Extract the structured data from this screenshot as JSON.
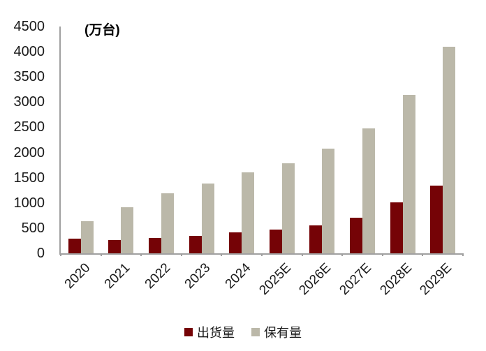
{
  "chart_data": {
    "type": "bar",
    "unit_label": "(万台)",
    "categories": [
      "2020",
      "2021",
      "2022",
      "2023",
      "2024",
      "2025E",
      "2026E",
      "2027E",
      "2028E",
      "2029E"
    ],
    "series": [
      {
        "name": "出货量",
        "color": "#750306",
        "values": [
          290,
          270,
          300,
          350,
          420,
          470,
          560,
          700,
          1010,
          1350
        ]
      },
      {
        "name": "保有量",
        "color": "#bbb8a9",
        "values": [
          640,
          910,
          1190,
          1380,
          1600,
          1790,
          2080,
          2480,
          3150,
          4100
        ]
      }
    ],
    "ylim": [
      0,
      4500
    ],
    "ytick_step": 500,
    "yticks": [
      0,
      500,
      1000,
      1500,
      2000,
      2500,
      3000,
      3500,
      4000,
      4500
    ],
    "grid": false,
    "legend_position": "bottom",
    "axis_color": "#a0a0a0",
    "text_color": "#1a1a1a"
  }
}
